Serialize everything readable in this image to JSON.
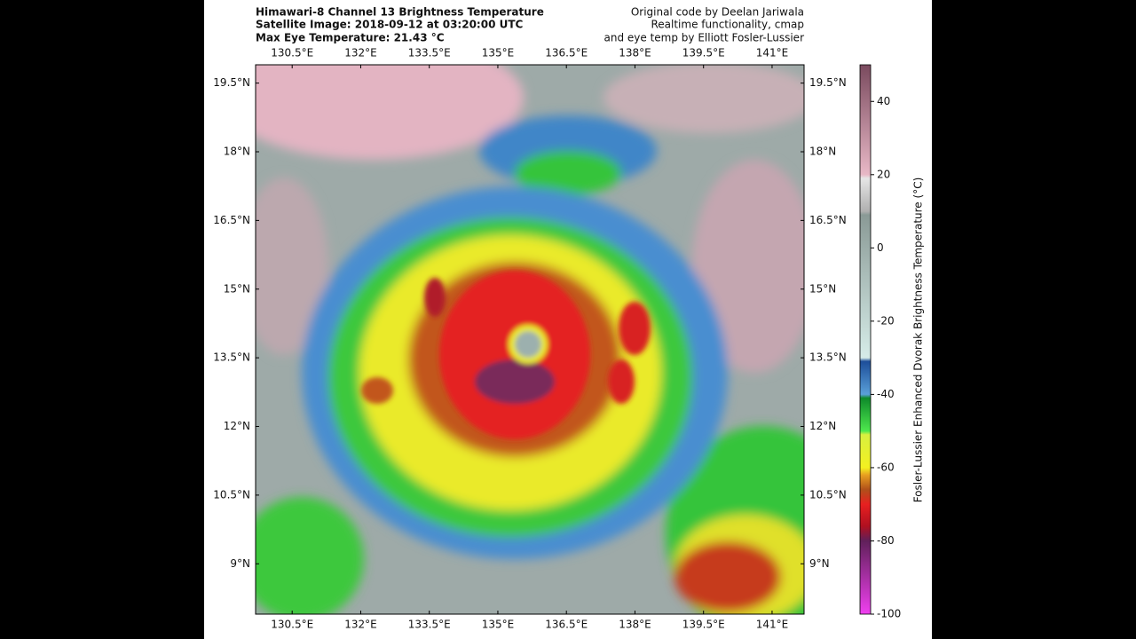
{
  "header": {
    "title_lines": [
      "Himawari-8 Channel 13 Brightness Temperature",
      "Satellite Image: 2018-09-12 at 03:20:00 UTC",
      "Max Eye Temperature: 21.43 °C"
    ],
    "credit_lines": [
      "Original code by Deelan Jariwala",
      "Realtime functionality, cmap",
      "and eye temp by Elliott Fosler-Lussier"
    ]
  },
  "map": {
    "xlim": [
      129.7,
      141.7
    ],
    "ylim": [
      7.9,
      19.9
    ],
    "xticks": [
      {
        "value": 130.5,
        "label": "130.5°E"
      },
      {
        "value": 132,
        "label": "132°E"
      },
      {
        "value": 133.5,
        "label": "133.5°E"
      },
      {
        "value": 135,
        "label": "135°E"
      },
      {
        "value": 136.5,
        "label": "136.5°E"
      },
      {
        "value": 138,
        "label": "138°E"
      },
      {
        "value": 139.5,
        "label": "139.5°E"
      },
      {
        "value": 141,
        "label": "141°E"
      }
    ],
    "yticks": [
      {
        "value": 19.5,
        "label": "19.5°N"
      },
      {
        "value": 18,
        "label": "18°N"
      },
      {
        "value": 16.5,
        "label": "16.5°N"
      },
      {
        "value": 15,
        "label": "15°N"
      },
      {
        "value": 13.5,
        "label": "13.5°N"
      },
      {
        "value": 12,
        "label": "12°N"
      },
      {
        "value": 10.5,
        "label": "10.5°N"
      },
      {
        "value": 9,
        "label": "9°N"
      }
    ]
  },
  "colorbar": {
    "label": "Fosler-Lussier Enhanced Dvorak Brightness Temperature (°C)",
    "lim": [
      -100,
      50
    ],
    "ticks": [
      40,
      20,
      0,
      -20,
      -40,
      -60,
      -80,
      -100
    ],
    "colormap": [
      {
        "value": 50,
        "color": "#7a4a5e"
      },
      {
        "value": 20,
        "color": "#e8b8c6"
      },
      {
        "value": 19,
        "color": "#e6e6e6"
      },
      {
        "value": 10,
        "color": "#b0b0b0"
      },
      {
        "value": 9,
        "color": "#8a9a96"
      },
      {
        "value": -30,
        "color": "#d6ece8"
      },
      {
        "value": -31,
        "color": "#1d4e9a"
      },
      {
        "value": -40,
        "color": "#5aa0d8"
      },
      {
        "value": -41,
        "color": "#0e8a2a"
      },
      {
        "value": -50,
        "color": "#4ee84e"
      },
      {
        "value": -51,
        "color": "#d8f040"
      },
      {
        "value": -60,
        "color": "#f4f020"
      },
      {
        "value": -62,
        "color": "#e8a020"
      },
      {
        "value": -66,
        "color": "#b0501a"
      },
      {
        "value": -70,
        "color": "#e82020"
      },
      {
        "value": -76,
        "color": "#b01020"
      },
      {
        "value": -80,
        "color": "#60205a"
      },
      {
        "value": -100,
        "color": "#f040f0"
      }
    ]
  }
}
